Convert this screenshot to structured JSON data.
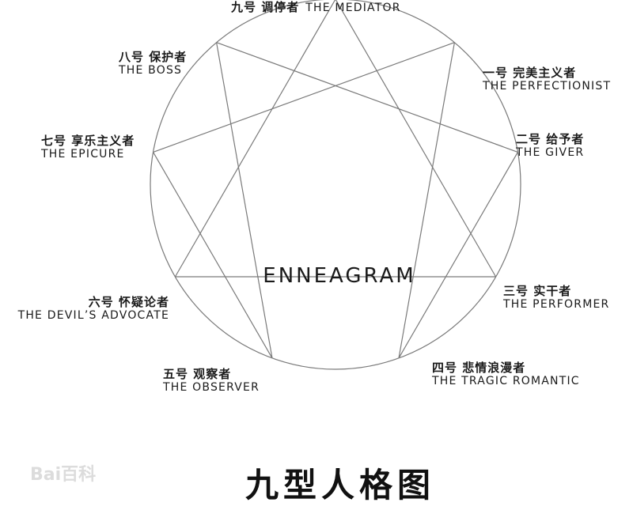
{
  "diagram": {
    "center_label": "ENNEAGRAM",
    "title": "九型人格图",
    "watermark": "Bai百科",
    "line_color": "#7a7a7a",
    "points": [
      {
        "id": 9,
        "cn": "九号 调停者",
        "en": "THE MEDIATOR"
      },
      {
        "id": 1,
        "cn": "一号 完美主义者",
        "en": "THE PERFECTIONIST"
      },
      {
        "id": 2,
        "cn": "二号 给予者",
        "en": "THE GIVER"
      },
      {
        "id": 3,
        "cn": "三号 实干者",
        "en": "THE PERFORMER"
      },
      {
        "id": 4,
        "cn": "四号 悲情浪漫者",
        "en": "THE TRAGIC ROMANTIC"
      },
      {
        "id": 5,
        "cn": "五号 观察者",
        "en": "THE OBSERVER"
      },
      {
        "id": 6,
        "cn": "六号 怀疑论者",
        "en": "THE DEVIL’S ADVOCATE"
      },
      {
        "id": 7,
        "cn": "七号 享乐主义者",
        "en": "THE EPICURE"
      },
      {
        "id": 8,
        "cn": "八号 保护者",
        "en": "THE BOSS"
      }
    ],
    "triangle": [
      9,
      3,
      6
    ],
    "hexad": [
      1,
      4,
      2,
      8,
      5,
      7
    ]
  }
}
